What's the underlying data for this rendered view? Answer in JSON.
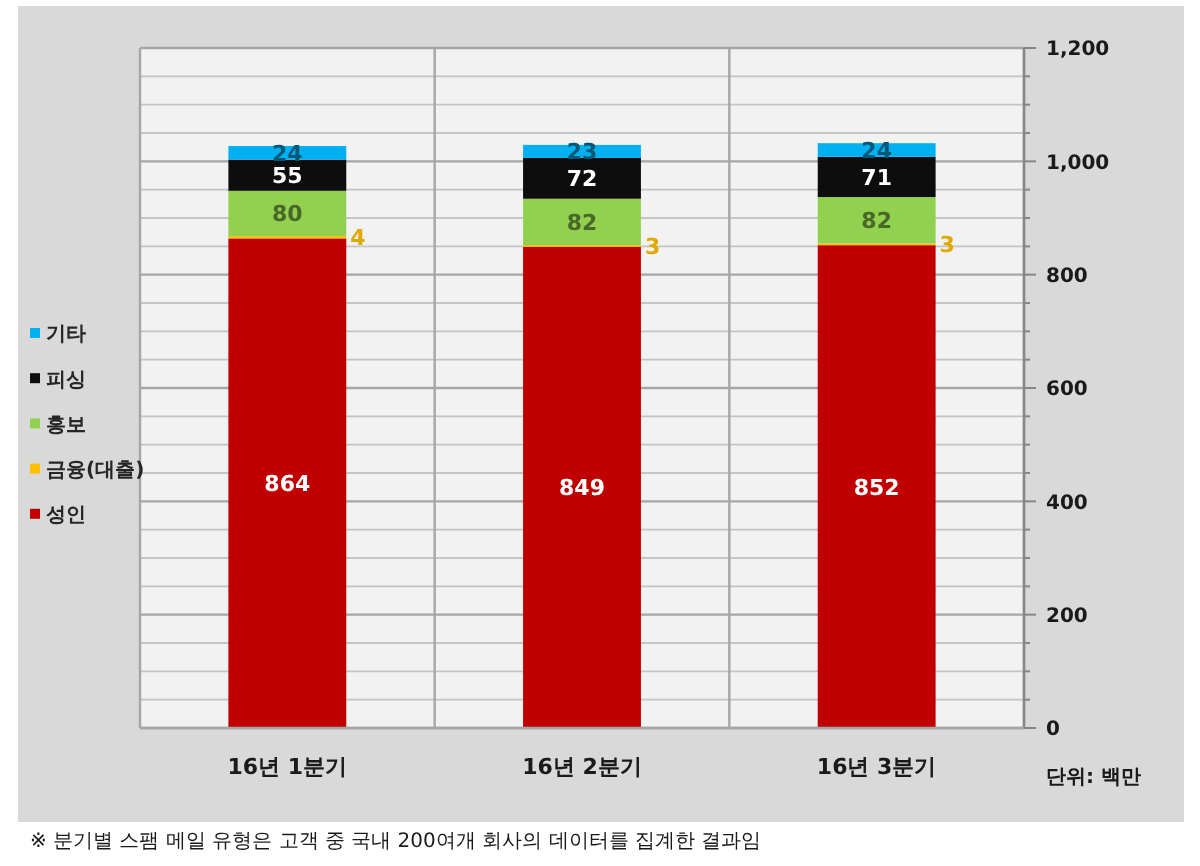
{
  "chart_data": {
    "type": "bar",
    "stacked": true,
    "categories": [
      "16년 1분기",
      "16년 2분기",
      "16년 3분기"
    ],
    "series": [
      {
        "name": "성인",
        "color": "#c00000",
        "values": [
          864,
          849,
          852
        ]
      },
      {
        "name": "금융(대출)",
        "color": "#ffc000",
        "values": [
          4,
          3,
          3
        ]
      },
      {
        "name": "홍보",
        "color": "#92d050",
        "values": [
          80,
          82,
          82
        ]
      },
      {
        "name": "피싱",
        "color": "#0d0d0d",
        "values": [
          55,
          72,
          71
        ]
      },
      {
        "name": "기타",
        "color": "#00b0f0",
        "values": [
          24,
          23,
          24
        ]
      }
    ],
    "ylim": [
      0,
      1200
    ],
    "yticks": [
      0,
      {
        "value": 50,
        "label": null
      },
      {
        "value": 100,
        "label": null
      },
      {
        "value": 150,
        "label": null
      },
      200,
      {
        "value": 250,
        "label": null
      },
      {
        "value": 300,
        "label": null
      },
      {
        "value": 350,
        "label": null
      },
      400,
      {
        "value": 450,
        "label": null
      },
      {
        "value": 500,
        "label": null
      },
      {
        "value": 550,
        "label": null
      },
      600,
      {
        "value": 650,
        "label": null
      },
      {
        "value": 700,
        "label": null
      },
      {
        "value": 750,
        "label": null
      },
      800,
      {
        "value": 850,
        "label": null
      },
      {
        "value": 900,
        "label": null
      },
      {
        "value": 950,
        "label": null
      },
      {
        "value": 1000,
        "label": "1,000"
      },
      {
        "value": 1050,
        "label": null
      },
      {
        "value": 1100,
        "label": null
      },
      {
        "value": 1150,
        "label": null
      },
      {
        "value": 1200,
        "label": "1,200"
      }
    ],
    "data_labels": true,
    "grid": true,
    "legend": "left",
    "annotations": [
      "단위: 백만",
      "※ 분기별 스팸 메일 유형은 고객 중 국내 200여개 회사의 데이터를 집계한 결과임"
    ]
  }
}
